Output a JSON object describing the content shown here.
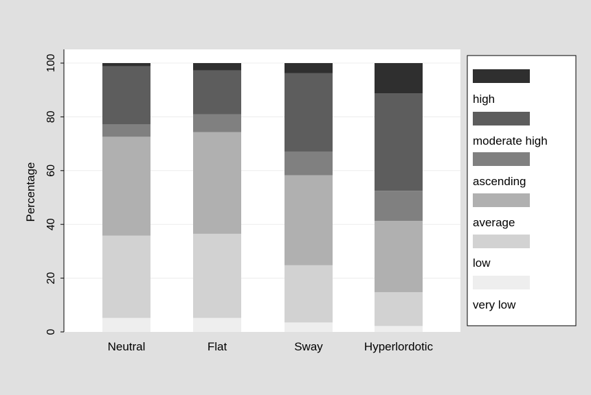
{
  "chart_data": {
    "type": "bar",
    "stacked": true,
    "title": "",
    "xlabel": "",
    "ylabel": "Percentage",
    "ylim": [
      0,
      100
    ],
    "yticks": [
      0,
      20,
      40,
      60,
      80,
      100
    ],
    "grid": true,
    "legend_position": "right",
    "categories": [
      "Neutral",
      "Flat",
      "Sway",
      "Hyperlordotic"
    ],
    "series": [
      {
        "name": "very low",
        "color": "#eeeeee",
        "values": [
          5.2,
          5.2,
          3.5,
          2.2
        ]
      },
      {
        "name": "low",
        "color": "#d2d2d2",
        "values": [
          30.6,
          31.3,
          21.3,
          12.6
        ]
      },
      {
        "name": "average",
        "color": "#b0b0b0",
        "values": [
          36.8,
          37.8,
          33.5,
          26.5
        ]
      },
      {
        "name": "ascending",
        "color": "#808080",
        "values": [
          4.6,
          6.7,
          8.8,
          11.2
        ]
      },
      {
        "name": "moderate high",
        "color": "#5d5d5d",
        "values": [
          21.6,
          16.3,
          29.2,
          36.2
        ]
      },
      {
        "name": "high",
        "color": "#2f2f2f",
        "values": [
          1.2,
          2.7,
          3.7,
          11.3
        ]
      }
    ]
  }
}
